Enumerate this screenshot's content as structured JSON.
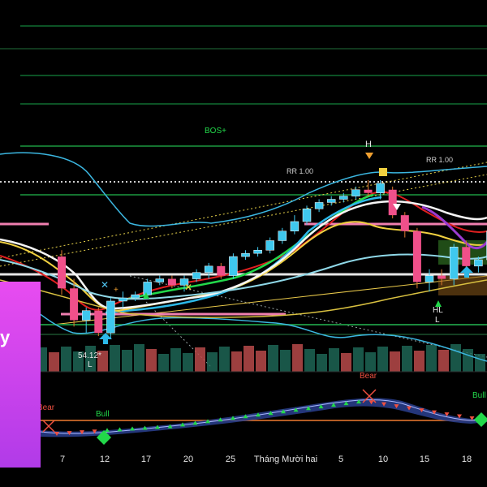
{
  "chart_data": {
    "type": "candlestick",
    "x_ticks": [
      "7",
      "12",
      "17",
      "20",
      "25",
      "Tháng Mười hai",
      "5",
      "10",
      "15",
      "18"
    ],
    "candles": [
      {
        "o": 128,
        "h": 130,
        "l": 116,
        "c": 118
      },
      {
        "o": 118,
        "h": 121,
        "l": 106,
        "c": 108
      },
      {
        "o": 108,
        "h": 112,
        "l": 104,
        "c": 111
      },
      {
        "o": 111,
        "h": 112,
        "l": 103,
        "c": 104
      },
      {
        "o": 104,
        "h": 115,
        "l": 102,
        "c": 114
      },
      {
        "o": 114,
        "h": 117,
        "l": 112,
        "c": 115
      },
      {
        "o": 115,
        "h": 117,
        "l": 114,
        "c": 116
      },
      {
        "o": 116,
        "h": 121,
        "l": 115,
        "c": 120
      },
      {
        "o": 120,
        "h": 122,
        "l": 119,
        "c": 121
      },
      {
        "o": 121,
        "h": 122,
        "l": 118,
        "c": 119
      },
      {
        "o": 119,
        "h": 122,
        "l": 117,
        "c": 121
      },
      {
        "o": 121,
        "h": 124,
        "l": 120,
        "c": 123
      },
      {
        "o": 123,
        "h": 126,
        "l": 121,
        "c": 125
      },
      {
        "o": 125,
        "h": 126,
        "l": 121,
        "c": 122
      },
      {
        "o": 122,
        "h": 129,
        "l": 121,
        "c": 128
      },
      {
        "o": 128,
        "h": 130,
        "l": 127,
        "c": 129
      },
      {
        "o": 129,
        "h": 131,
        "l": 128,
        "c": 130
      },
      {
        "o": 130,
        "h": 134,
        "l": 129,
        "c": 133
      },
      {
        "o": 133,
        "h": 137,
        "l": 132,
        "c": 136
      },
      {
        "o": 136,
        "h": 141,
        "l": 135,
        "c": 139
      },
      {
        "o": 139,
        "h": 144,
        "l": 138,
        "c": 143
      },
      {
        "o": 143,
        "h": 146,
        "l": 142,
        "c": 145
      },
      {
        "o": 145,
        "h": 147,
        "l": 144,
        "c": 146
      },
      {
        "o": 146,
        "h": 148,
        "l": 145,
        "c": 147
      },
      {
        "o": 147,
        "h": 150,
        "l": 146,
        "c": 149
      },
      {
        "o": 149,
        "h": 152,
        "l": 147,
        "c": 148
      },
      {
        "o": 148,
        "h": 152,
        "l": 146,
        "c": 151
      },
      {
        "o": 149,
        "h": 150,
        "l": 140,
        "c": 141
      },
      {
        "o": 141,
        "h": 142,
        "l": 134,
        "c": 136
      },
      {
        "o": 136,
        "h": 137,
        "l": 118,
        "c": 120
      },
      {
        "o": 120,
        "h": 124,
        "l": 117,
        "c": 122
      },
      {
        "o": 122,
        "h": 124,
        "l": 119,
        "c": 121
      },
      {
        "o": 121,
        "h": 132,
        "l": 119,
        "c": 131
      },
      {
        "o": 131,
        "h": 133,
        "l": 124,
        "c": 125
      },
      {
        "o": 125,
        "h": 128,
        "l": 123,
        "c": 127
      },
      {
        "o": 127,
        "h": 137,
        "l": 126,
        "c": 136
      }
    ],
    "annotations": [
      "BOS+",
      "H",
      "RR 1.00",
      "RR 1.00",
      "HL",
      "L",
      "L",
      "54.12*",
      "Bear",
      "Bear",
      "Bull",
      "Bull"
    ],
    "promo_text": "y",
    "grid": false
  }
}
